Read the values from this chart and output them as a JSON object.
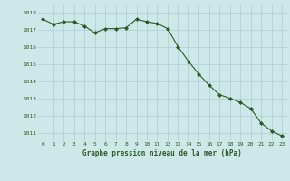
{
  "x": [
    0,
    1,
    2,
    3,
    4,
    5,
    6,
    7,
    8,
    9,
    10,
    11,
    12,
    13,
    14,
    15,
    16,
    17,
    18,
    19,
    20,
    21,
    22,
    23
  ],
  "y": [
    1017.6,
    1017.3,
    1017.45,
    1017.45,
    1017.2,
    1016.8,
    1017.05,
    1017.05,
    1017.1,
    1017.6,
    1017.45,
    1017.35,
    1017.05,
    1016.0,
    1015.15,
    1014.4,
    1013.75,
    1013.2,
    1013.0,
    1012.75,
    1012.4,
    1011.55,
    1011.1,
    1010.8
  ],
  "line_color": "#2d5a27",
  "marker": "D",
  "marker_size": 2.0,
  "bg_color": "#cce8e8",
  "plot_bg_color": "#cce8e8",
  "grid_color": "#aacfcf",
  "xlabel": "Graphe pression niveau de la mer (hPa)",
  "xlabel_color": "#2d5a27",
  "tick_color": "#2d5a27",
  "ylim": [
    1010.5,
    1018.4
  ],
  "xlim": [
    -0.5,
    23.5
  ],
  "yticks": [
    1011,
    1012,
    1013,
    1014,
    1015,
    1016,
    1017,
    1018
  ],
  "xticks": [
    0,
    1,
    2,
    3,
    4,
    5,
    6,
    7,
    8,
    9,
    10,
    11,
    12,
    13,
    14,
    15,
    16,
    17,
    18,
    19,
    20,
    21,
    22,
    23
  ],
  "xtick_labels": [
    "0",
    "1",
    "2",
    "3",
    "4",
    "5",
    "6",
    "7",
    "8",
    "9",
    "10",
    "11",
    "12",
    "13",
    "14",
    "15",
    "16",
    "17",
    "18",
    "19",
    "20",
    "21",
    "22",
    "23"
  ]
}
